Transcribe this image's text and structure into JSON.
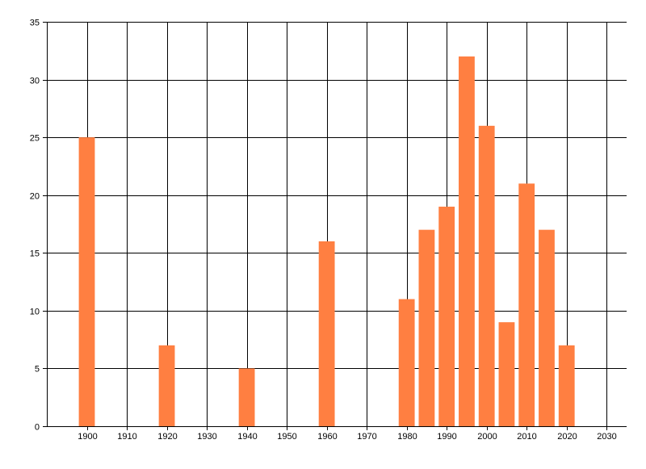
{
  "chart_data": {
    "type": "bar",
    "title": "",
    "xlabel": "",
    "ylabel": "",
    "x": [
      1900,
      1920,
      1940,
      1960,
      1980,
      1985,
      1990,
      1995,
      2000,
      2005,
      2010,
      2015,
      2020
    ],
    "values": [
      25,
      7,
      5,
      16,
      11,
      17,
      19,
      32,
      26,
      9,
      21,
      17,
      7
    ],
    "bar_width_years": 4,
    "xlim": [
      1890,
      2035
    ],
    "ylim": [
      0,
      35
    ],
    "xticks": [
      1900,
      1910,
      1920,
      1930,
      1940,
      1950,
      1960,
      1970,
      1980,
      1990,
      2000,
      2010,
      2020,
      2030
    ],
    "yticks": [
      0,
      5,
      10,
      15,
      20,
      25,
      30,
      35
    ],
    "grid": true,
    "legend": "none",
    "colors": {
      "bar": "#ff7f41",
      "grid": "#000000",
      "axis": "#000000",
      "background": "#ffffff"
    }
  }
}
